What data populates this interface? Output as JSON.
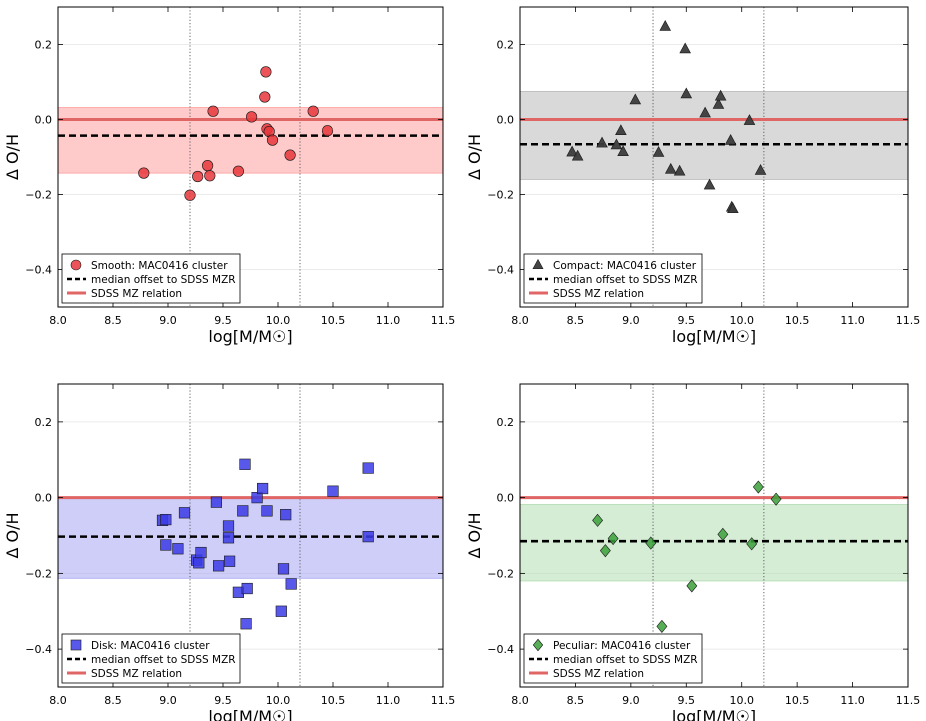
{
  "chart_data": [
    {
      "type": "scatter",
      "marker": "circle",
      "color": "#e8363b",
      "band_color": "#ff9f9f",
      "xlabel": "log[M/M☉]",
      "ylabel": "Δ O/H",
      "xlim": [
        8.0,
        11.5
      ],
      "ylim": [
        -0.5,
        0.3
      ],
      "x_ticks": [
        "8.0",
        "8.5",
        "9.0",
        "9.5",
        "10.0",
        "10.5",
        "11.0",
        "11.5"
      ],
      "y_ticks": [
        "−0.4",
        "−0.2",
        "0.0",
        "0.2"
      ],
      "y_tick_values": [
        -0.4,
        -0.2,
        0.0,
        0.2
      ],
      "vlines": [
        9.2,
        10.2
      ],
      "median": -0.043,
      "band": [
        -0.143,
        0.032
      ],
      "sdss": 0.0,
      "legend": {
        "placement": "lower-left",
        "entries": [
          "Smooth: MAC0416 cluster",
          "median offset to SDSS MZR",
          "SDSS MZ relation"
        ]
      },
      "points": [
        {
          "x": 8.78,
          "y": -0.143
        },
        {
          "x": 9.2,
          "y": -0.202
        },
        {
          "x": 9.27,
          "y": -0.152
        },
        {
          "x": 9.36,
          "y": -0.123
        },
        {
          "x": 9.38,
          "y": -0.15
        },
        {
          "x": 9.41,
          "y": 0.022
        },
        {
          "x": 9.64,
          "y": -0.138
        },
        {
          "x": 9.76,
          "y": 0.007
        },
        {
          "x": 9.88,
          "y": 0.06
        },
        {
          "x": 9.89,
          "y": 0.127
        },
        {
          "x": 9.9,
          "y": -0.025
        },
        {
          "x": 9.92,
          "y": -0.032
        },
        {
          "x": 9.95,
          "y": -0.055
        },
        {
          "x": 10.11,
          "y": -0.095
        },
        {
          "x": 10.32,
          "y": 0.022
        },
        {
          "x": 10.45,
          "y": -0.03
        }
      ]
    },
    {
      "type": "scatter",
      "marker": "triangle",
      "color": "#3c3c3c",
      "band_color": "#b9b9b9",
      "xlabel": "log[M/M☉]",
      "ylabel": "Δ O/H",
      "xlim": [
        8.0,
        11.5
      ],
      "ylim": [
        -0.5,
        0.3
      ],
      "x_ticks": [
        "8.0",
        "8.5",
        "9.0",
        "9.5",
        "10.0",
        "10.5",
        "11.0",
        "11.5"
      ],
      "y_ticks": [
        "−0.4",
        "−0.2",
        "0.0",
        "0.2"
      ],
      "y_tick_values": [
        -0.4,
        -0.2,
        0.0,
        0.2
      ],
      "vlines": [
        9.2,
        10.2
      ],
      "median": -0.066,
      "band": [
        -0.16,
        0.075
      ],
      "sdss": 0.0,
      "legend": {
        "placement": "lower-left",
        "entries": [
          "Compact: MAC0416 cluster",
          "median offset to SDSS MZR",
          "SDSS MZ relation"
        ]
      },
      "points": [
        {
          "x": 8.47,
          "y": -0.087
        },
        {
          "x": 8.52,
          "y": -0.098
        },
        {
          "x": 8.74,
          "y": -0.063
        },
        {
          "x": 8.87,
          "y": -0.068
        },
        {
          "x": 8.91,
          "y": -0.03
        },
        {
          "x": 8.93,
          "y": -0.086
        },
        {
          "x": 9.04,
          "y": 0.052
        },
        {
          "x": 9.25,
          "y": -0.088
        },
        {
          "x": 9.31,
          "y": 0.248
        },
        {
          "x": 9.36,
          "y": -0.133
        },
        {
          "x": 9.44,
          "y": -0.138
        },
        {
          "x": 9.49,
          "y": 0.188
        },
        {
          "x": 9.5,
          "y": 0.068
        },
        {
          "x": 9.67,
          "y": 0.017
        },
        {
          "x": 9.71,
          "y": -0.175
        },
        {
          "x": 9.79,
          "y": 0.04
        },
        {
          "x": 9.81,
          "y": 0.062
        },
        {
          "x": 9.9,
          "y": -0.056
        },
        {
          "x": 9.91,
          "y": -0.234
        },
        {
          "x": 9.92,
          "y": -0.238
        },
        {
          "x": 10.07,
          "y": -0.003
        },
        {
          "x": 10.17,
          "y": -0.136
        }
      ]
    },
    {
      "type": "scatter",
      "marker": "square",
      "color": "#3b3be6",
      "band_color": "#a6a6f2",
      "xlabel": "log[M/M☉]",
      "ylabel": "Δ O/H",
      "xlim": [
        8.0,
        11.5
      ],
      "ylim": [
        -0.5,
        0.3
      ],
      "x_ticks": [
        "8.0",
        "8.5",
        "9.0",
        "9.5",
        "10.0",
        "10.5",
        "11.0",
        "11.5"
      ],
      "y_ticks": [
        "−0.4",
        "−0.2",
        "0.0",
        "0.2"
      ],
      "y_tick_values": [
        -0.4,
        -0.2,
        0.0,
        0.2
      ],
      "vlines": [
        9.2,
        10.2
      ],
      "median": -0.103,
      "band": [
        -0.213,
        0.0
      ],
      "sdss": 0.0,
      "legend": {
        "placement": "lower-left",
        "entries": [
          "Disk: MAC0416 cluster",
          "median offset to SDSS MZR",
          "SDSS MZ relation"
        ]
      },
      "points": [
        {
          "x": 8.95,
          "y": -0.06
        },
        {
          "x": 8.98,
          "y": -0.058
        },
        {
          "x": 8.98,
          "y": -0.125
        },
        {
          "x": 9.09,
          "y": -0.135
        },
        {
          "x": 9.15,
          "y": -0.04
        },
        {
          "x": 9.26,
          "y": -0.165
        },
        {
          "x": 9.28,
          "y": -0.172
        },
        {
          "x": 9.3,
          "y": -0.145
        },
        {
          "x": 9.44,
          "y": -0.012
        },
        {
          "x": 9.46,
          "y": -0.18
        },
        {
          "x": 9.55,
          "y": -0.075
        },
        {
          "x": 9.55,
          "y": -0.106
        },
        {
          "x": 9.56,
          "y": -0.168
        },
        {
          "x": 9.64,
          "y": -0.25
        },
        {
          "x": 9.68,
          "y": -0.035
        },
        {
          "x": 9.7,
          "y": 0.088
        },
        {
          "x": 9.71,
          "y": -0.333
        },
        {
          "x": 9.72,
          "y": -0.24
        },
        {
          "x": 9.81,
          "y": 0.0
        },
        {
          "x": 9.86,
          "y": 0.024
        },
        {
          "x": 9.9,
          "y": -0.035
        },
        {
          "x": 10.03,
          "y": -0.3
        },
        {
          "x": 10.05,
          "y": -0.188
        },
        {
          "x": 10.07,
          "y": -0.045
        },
        {
          "x": 10.12,
          "y": -0.228
        },
        {
          "x": 10.5,
          "y": 0.017
        },
        {
          "x": 10.82,
          "y": 0.078
        },
        {
          "x": 10.82,
          "y": -0.103
        }
      ]
    },
    {
      "type": "scatter",
      "marker": "diamond",
      "color": "#3aa03a",
      "band_color": "#b3dcb3",
      "xlabel": "log[M/M☉]",
      "ylabel": "Δ O/H",
      "xlim": [
        8.0,
        11.5
      ],
      "ylim": [
        -0.5,
        0.3
      ],
      "x_ticks": [
        "8.0",
        "8.5",
        "9.0",
        "9.5",
        "10.0",
        "10.5",
        "11.0",
        "11.5"
      ],
      "y_ticks": [
        "−0.4",
        "−0.2",
        "0.0",
        "0.2"
      ],
      "y_tick_values": [
        -0.4,
        -0.2,
        0.0,
        0.2
      ],
      "vlines": [
        9.2,
        10.2
      ],
      "median": -0.115,
      "band": [
        -0.22,
        -0.018
      ],
      "sdss": 0.0,
      "legend": {
        "placement": "lower-left",
        "entries": [
          "Peculiar: MAC0416 cluster",
          "median offset to SDSS MZR",
          "SDSS MZ relation"
        ]
      },
      "points": [
        {
          "x": 8.7,
          "y": -0.06
        },
        {
          "x": 8.77,
          "y": -0.14
        },
        {
          "x": 8.84,
          "y": -0.108
        },
        {
          "x": 9.18,
          "y": -0.12
        },
        {
          "x": 9.28,
          "y": -0.34
        },
        {
          "x": 9.55,
          "y": -0.233
        },
        {
          "x": 9.83,
          "y": -0.097
        },
        {
          "x": 10.09,
          "y": -0.122
        },
        {
          "x": 10.15,
          "y": 0.028
        },
        {
          "x": 10.31,
          "y": -0.004
        }
      ]
    }
  ]
}
